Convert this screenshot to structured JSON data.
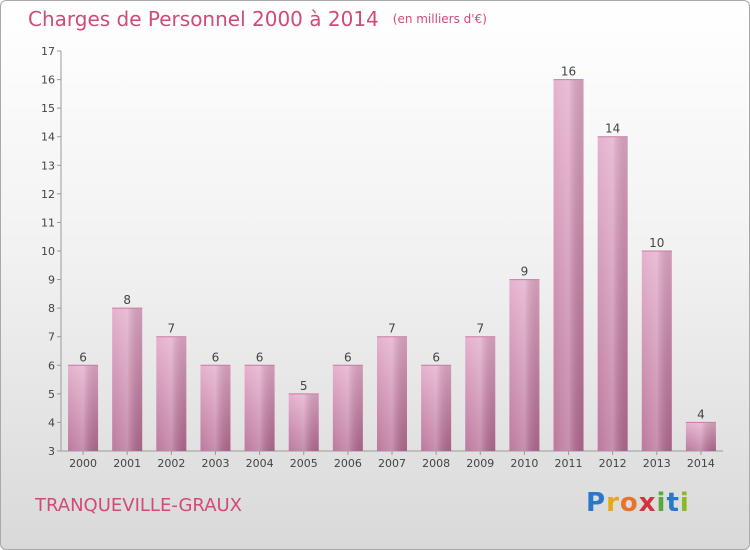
{
  "chart_data": {
    "type": "bar",
    "title": "Charges de Personnel 2000 à 2014",
    "subtitle": "(en milliers d'€)",
    "categories": [
      "2000",
      "2001",
      "2002",
      "2003",
      "2004",
      "2005",
      "2006",
      "2007",
      "2008",
      "2009",
      "2010",
      "2011",
      "2012",
      "2013",
      "2014"
    ],
    "values": [
      6,
      8,
      7,
      6,
      6,
      5,
      6,
      7,
      6,
      7,
      9,
      16,
      14,
      10,
      4
    ],
    "ylim": [
      3,
      17
    ],
    "yticks": [
      3,
      4,
      5,
      6,
      7,
      8,
      9,
      10,
      11,
      12,
      13,
      14,
      15,
      16,
      17
    ],
    "grid": false,
    "bar_color": "#d98fb5"
  },
  "footer": {
    "city": "TRANQUEVILLE-GRAUX",
    "logo": [
      "P",
      "r",
      "o",
      "x",
      "i",
      "t",
      "i"
    ]
  }
}
